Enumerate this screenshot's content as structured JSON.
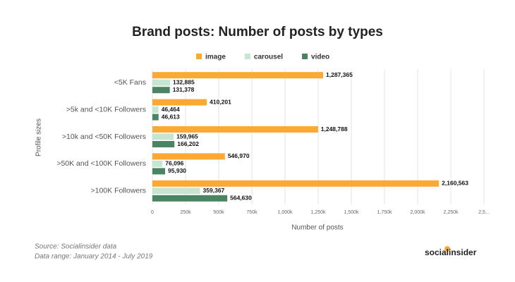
{
  "chart_data": {
    "type": "hbar",
    "title": "Brand posts: Number of posts by types",
    "x_label": "Number of posts",
    "y_label": "Profile sizes",
    "categories": [
      "<5K Fans",
      ">5k and <10K Followers",
      ">10k and <50K Followers",
      ">50K and <100K Followers",
      ">100K Followers"
    ],
    "series": [
      {
        "name": "image",
        "color": "#f9a934",
        "values": [
          1287365,
          410201,
          1248788,
          546970,
          2160563
        ],
        "value_labels": [
          "1,287,365",
          "410,201",
          "1,248,788",
          "546,970",
          "2,160,563"
        ]
      },
      {
        "name": "carousel",
        "color": "#c6e5d3",
        "values": [
          132885,
          46464,
          159965,
          76096,
          359367
        ],
        "value_labels": [
          "132,885",
          "46,464",
          "159,965",
          "76,096",
          "359,367"
        ]
      },
      {
        "name": "video",
        "color": "#4a8462",
        "values": [
          131378,
          46613,
          166202,
          95930,
          564630
        ],
        "value_labels": [
          "131,378",
          "46,613",
          "166,202",
          "95,930",
          "564,630"
        ]
      }
    ],
    "xlim": [
      0,
      2500000
    ],
    "xticks": [
      0,
      {
        "value": 250000,
        "label": "250k"
      },
      {
        "value": 500000,
        "label": "500k"
      },
      {
        "value": 750000,
        "label": "750k"
      },
      {
        "value": 1000000,
        "label": "1,000k"
      },
      {
        "value": 1250000,
        "label": "1,250k"
      },
      {
        "value": 1500000,
        "label": "1,500k"
      },
      {
        "value": 1750000,
        "label": "1,750k"
      },
      {
        "value": 2000000,
        "label": "2,000k"
      },
      {
        "value": 2250000,
        "label": "2,250k"
      },
      {
        "value": 2500000,
        "label": "2,5..."
      }
    ],
    "grid": true,
    "legend": "top",
    "source": "Source: Socialinsider data",
    "range": "Data range: January 2014 - July 2019",
    "logo": "socialinsider"
  }
}
